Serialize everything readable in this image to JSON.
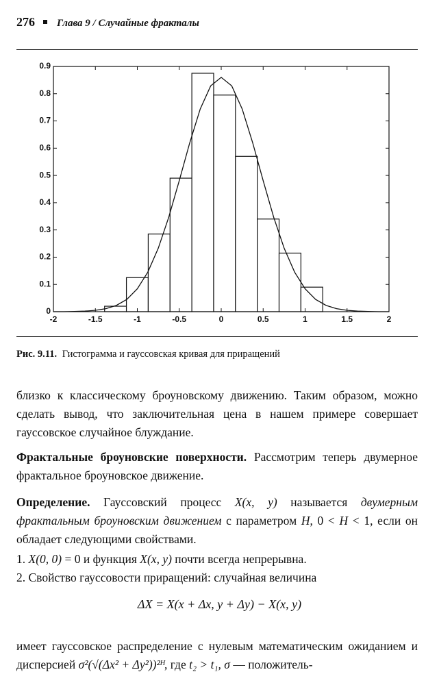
{
  "header": {
    "page": "276",
    "chapter": "Глава 9 / Случайные фракталы"
  },
  "chart_data": {
    "type": "histogram",
    "bins": [
      -1.39,
      -1.13,
      -0.87,
      -0.61,
      -0.35,
      -0.09,
      0.17,
      0.43,
      0.69,
      0.95,
      1.21
    ],
    "values": [
      0.02,
      0.125,
      0.285,
      0.49,
      0.875,
      0.795,
      0.57,
      0.34,
      0.215,
      0.09
    ],
    "curve": {
      "x": [
        -2,
        -1.875,
        -1.75,
        -1.625,
        -1.5,
        -1.375,
        -1.25,
        -1.125,
        -1,
        -0.875,
        -0.75,
        -0.625,
        -0.5,
        -0.375,
        -0.25,
        -0.125,
        0,
        0.125,
        0.25,
        0.375,
        0.5,
        0.625,
        0.75,
        0.875,
        1,
        1.125,
        1.25,
        1.375,
        1.5,
        1.625,
        1.75,
        1.875,
        2
      ],
      "values": [
        0,
        0,
        0.001,
        0.002,
        0.005,
        0.011,
        0.023,
        0.045,
        0.084,
        0.145,
        0.233,
        0.347,
        0.481,
        0.62,
        0.744,
        0.829,
        0.86,
        0.829,
        0.744,
        0.62,
        0.481,
        0.347,
        0.233,
        0.145,
        0.084,
        0.045,
        0.023,
        0.011,
        0.005,
        0.002,
        0.001,
        0,
        0
      ]
    },
    "xlim": [
      -2,
      2
    ],
    "xticks": [
      -2,
      -1.5,
      -1,
      -0.5,
      0,
      0.5,
      1,
      1.5,
      2
    ],
    "ylim": [
      0,
      0.9
    ],
    "yticks": [
      0,
      0.1,
      0.2,
      0.3,
      0.4,
      0.5,
      0.6,
      0.7,
      0.8,
      0.9
    ],
    "color": "#111111",
    "caption_label": "Рис. 9.11.",
    "caption": "Гистограмма и гауссовская кривая для приращений"
  },
  "body": {
    "p1": "близко к классическому броуновскому движению. Таким образом, можно сделать вывод, что заключительная цена в нашем примере совершает гауссовское случайное блуждание.",
    "p2_head": "Фрактальные броуновские поверхности.",
    "p2": "Рассмотрим теперь двумерное фрактальное броуновское движение.",
    "def_head": "Определение.",
    "def": [
      "Гауссовский процесс",
      "X(x, y)",
      "называется",
      "двумерным фрактальным броуновским движением",
      "с параметром",
      "H",
      ", 0 <",
      "H",
      "< 1, если он обладает следующими свойствами."
    ],
    "items": [
      [
        "1.",
        "X(0, 0)",
        "= 0 и функция",
        "X(x, y)",
        "почти всегда непрерывна."
      ],
      [
        "2. Свойство гауссовости приращений: случайная величина"
      ]
    ],
    "formula": "ΔX = X(x + Δx, y + Δy) − X(x, y)",
    "last": [
      "имеет гауссовское распределение с нулевым математическим ожиданием и дисперсией",
      "σ²(√(Δx² + Δy²))²ᴴ",
      ", где",
      "t₂ > t₁, σ",
      "— положитель-"
    ]
  }
}
